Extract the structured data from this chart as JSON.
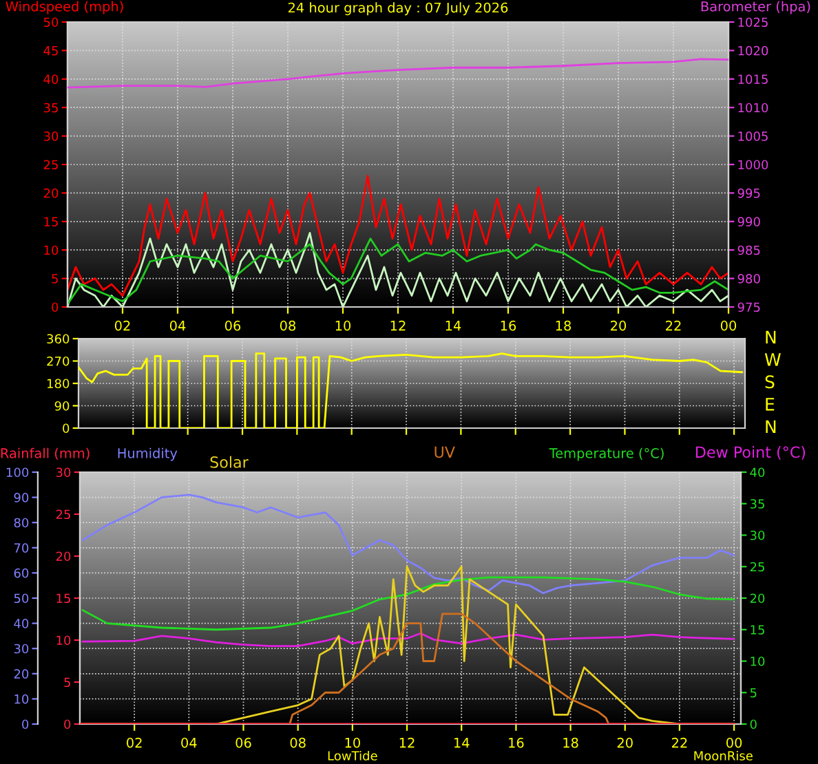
{
  "chart_data": [
    {
      "type": "line",
      "title": "24 hour graph day : 07 July 2026",
      "ylabel": "Windspeed (mph)",
      "y2label": "Barometer (hpa)",
      "grid": true,
      "xlim": [
        "2026-07-07T00:00",
        "2026-07-08T00:00"
      ],
      "xticks": [
        {
          "value": "2026-07-07T02:00",
          "label": "02"
        },
        {
          "value": "2026-07-07T04:00",
          "label": "04"
        },
        {
          "value": "2026-07-07T06:00",
          "label": "06"
        },
        {
          "value": "2026-07-07T08:00",
          "label": "08"
        },
        {
          "value": "2026-07-07T10:00",
          "label": "10"
        },
        {
          "value": "2026-07-07T12:00",
          "label": "12"
        },
        {
          "value": "2026-07-07T14:00",
          "label": "14"
        },
        {
          "value": "2026-07-07T16:00",
          "label": "16"
        },
        {
          "value": "2026-07-07T18:00",
          "label": "18"
        },
        {
          "value": "2026-07-07T20:00",
          "label": "20"
        },
        {
          "value": "2026-07-07T22:00",
          "label": "22"
        },
        {
          "value": "2026-07-08T00:00",
          "label": "00"
        }
      ],
      "ylim": [
        0,
        50
      ],
      "yticks": [
        0,
        5,
        10,
        15,
        20,
        25,
        30,
        35,
        40,
        45,
        50
      ],
      "y2lim": [
        975,
        1025
      ],
      "y2ticks": [
        975,
        980,
        985,
        990,
        995,
        1000,
        1005,
        1010,
        1015,
        1020,
        1025
      ],
      "x": [
        "2026-07-07T00:00",
        "2026-07-07T00:18",
        "2026-07-07T00:36",
        "2026-07-07T01:00",
        "2026-07-07T01:18",
        "2026-07-07T01:36",
        "2026-07-07T02:00",
        "2026-07-07T02:18",
        "2026-07-07T02:36",
        "2026-07-07T02:48",
        "2026-07-07T03:00",
        "2026-07-07T03:18",
        "2026-07-07T03:36",
        "2026-07-07T04:00",
        "2026-07-07T04:18",
        "2026-07-07T04:36",
        "2026-07-07T05:00",
        "2026-07-07T05:18",
        "2026-07-07T05:36",
        "2026-07-07T06:00",
        "2026-07-07T06:18",
        "2026-07-07T06:36",
        "2026-07-07T07:00",
        "2026-07-07T07:24",
        "2026-07-07T07:42",
        "2026-07-07T08:00",
        "2026-07-07T08:18",
        "2026-07-07T08:36",
        "2026-07-07T08:48",
        "2026-07-07T09:06",
        "2026-07-07T09:24",
        "2026-07-07T09:42",
        "2026-07-07T10:00",
        "2026-07-07T10:18",
        "2026-07-07T10:36",
        "2026-07-07T10:54",
        "2026-07-07T11:12",
        "2026-07-07T11:30",
        "2026-07-07T11:48",
        "2026-07-07T12:06",
        "2026-07-07T12:30",
        "2026-07-07T12:48",
        "2026-07-07T13:12",
        "2026-07-07T13:30",
        "2026-07-07T13:48",
        "2026-07-07T14:06",
        "2026-07-07T14:30",
        "2026-07-07T14:48",
        "2026-07-07T15:12",
        "2026-07-07T15:36",
        "2026-07-07T16:00",
        "2026-07-07T16:24",
        "2026-07-07T16:48",
        "2026-07-07T17:06",
        "2026-07-07T17:30",
        "2026-07-07T17:54",
        "2026-07-07T18:18",
        "2026-07-07T18:42",
        "2026-07-07T19:00",
        "2026-07-07T19:24",
        "2026-07-07T19:42",
        "2026-07-07T20:00",
        "2026-07-07T20:18",
        "2026-07-07T20:42",
        "2026-07-07T21:00",
        "2026-07-07T21:30",
        "2026-07-07T22:00",
        "2026-07-07T22:30",
        "2026-07-07T23:00",
        "2026-07-07T23:24",
        "2026-07-07T23:42",
        "2026-07-08T00:00"
      ],
      "series": [
        {
          "color": "#ff0000",
          "values": [
            3,
            7,
            4,
            5,
            3,
            4,
            2,
            5,
            8,
            14,
            18,
            12,
            19,
            13,
            17,
            11,
            20,
            12,
            17,
            8,
            12,
            17,
            11,
            19,
            13,
            17,
            11,
            18,
            20,
            14,
            8,
            11,
            6,
            11,
            15,
            23,
            14,
            19,
            12,
            18,
            10,
            16,
            11,
            19,
            12,
            18,
            9,
            17,
            11,
            19,
            12,
            18,
            13,
            21,
            12,
            16,
            10,
            15,
            9,
            14,
            7,
            10,
            5,
            8,
            4,
            6,
            4,
            6,
            4,
            7,
            5,
            6
          ]
        },
        {
          "color": "#c8f5c0",
          "values": [
            0,
            5,
            3,
            2,
            0,
            2,
            0,
            3,
            6,
            9,
            12,
            7,
            11,
            7,
            11,
            6,
            10,
            7,
            11,
            3,
            8,
            10,
            6,
            11,
            7,
            10,
            6,
            10,
            13,
            6,
            3,
            4,
            0,
            3,
            6,
            9,
            3,
            7,
            2,
            6,
            2,
            6,
            1,
            5,
            2,
            6,
            1,
            5,
            2,
            6,
            1,
            5,
            2,
            6,
            1,
            5,
            1,
            4,
            1,
            4,
            1,
            3,
            0,
            2,
            0,
            2,
            1,
            3,
            1,
            3,
            1,
            2
          ]
        },
        {
          "color": "#22cc22",
          "x": [
            "2026-07-07T00:00",
            "2026-07-07T00:30",
            "2026-07-07T01:00",
            "2026-07-07T01:30",
            "2026-07-07T02:00",
            "2026-07-07T02:30",
            "2026-07-07T03:00",
            "2026-07-07T04:00",
            "2026-07-07T05:00",
            "2026-07-07T05:30",
            "2026-07-07T06:00",
            "2026-07-07T06:30",
            "2026-07-07T07:00",
            "2026-07-07T08:00",
            "2026-07-07T08:48",
            "2026-07-07T09:12",
            "2026-07-07T09:30",
            "2026-07-07T10:00",
            "2026-07-07T10:18",
            "2026-07-07T10:36",
            "2026-07-07T11:00",
            "2026-07-07T11:24",
            "2026-07-07T12:00",
            "2026-07-07T12:24",
            "2026-07-07T13:00",
            "2026-07-07T13:36",
            "2026-07-07T14:00",
            "2026-07-07T14:30",
            "2026-07-07T15:00",
            "2026-07-07T15:30",
            "2026-07-07T16:00",
            "2026-07-07T16:18",
            "2026-07-07T16:48",
            "2026-07-07T17:00",
            "2026-07-07T17:30",
            "2026-07-07T18:00",
            "2026-07-07T18:30",
            "2026-07-07T19:00",
            "2026-07-07T19:30",
            "2026-07-07T20:00",
            "2026-07-07T20:30",
            "2026-07-07T21:00",
            "2026-07-07T21:30",
            "2026-07-07T22:00",
            "2026-07-07T23:00",
            "2026-07-07T23:30",
            "2026-07-08T00:00"
          ],
          "values": [
            0.5,
            4,
            3,
            2,
            1,
            3,
            8,
            9,
            8.5,
            8,
            5,
            7,
            9,
            8,
            11,
            8,
            6,
            4,
            5,
            8,
            12,
            9,
            11,
            8,
            9.5,
            9,
            10,
            8,
            9,
            9.5,
            10,
            8.5,
            10,
            11,
            10,
            9.5,
            8,
            6.5,
            6,
            4.5,
            3,
            3.5,
            2.5,
            2.5,
            3,
            4.5,
            3
          ]
        },
        {
          "color": "#e040e0",
          "axis": "y2",
          "x": [
            "2026-07-07T00:00",
            "2026-07-07T02:00",
            "2026-07-07T04:00",
            "2026-07-07T05:00",
            "2026-07-07T06:00",
            "2026-07-07T08:00",
            "2026-07-07T09:00",
            "2026-07-07T10:00",
            "2026-07-07T12:00",
            "2026-07-07T14:00",
            "2026-07-07T16:00",
            "2026-07-07T18:00",
            "2026-07-07T20:00",
            "2026-07-07T22:00",
            "2026-07-07T23:00",
            "2026-07-08T00:00"
          ],
          "values": [
            1013.5,
            1013.8,
            1013.8,
            1013.6,
            1014.2,
            1015,
            1015.5,
            1016,
            1016.6,
            1017,
            1017,
            1017.3,
            1017.8,
            1018,
            1018.5,
            1018.4
          ]
        }
      ]
    },
    {
      "type": "line",
      "grid": true,
      "tick_labels": "y",
      "xlim": [
        0,
        24.4
      ],
      "xticks": [
        2,
        4,
        6,
        8,
        10,
        12,
        14,
        16,
        18,
        20,
        22,
        24
      ],
      "ylim": [
        0,
        360
      ],
      "yticks": [
        0,
        90,
        180,
        270,
        360
      ],
      "annotations": [
        "N",
        "W",
        "S",
        "E",
        "N"
      ],
      "series": [
        {
          "color": "#ffff00",
          "x": [
            0,
            0.3,
            0.5,
            0.7,
            1,
            1.3,
            1.8,
            2,
            2.3,
            2.5,
            2.5,
            2.8,
            2.8,
            3.0,
            3.0,
            3.3,
            3.3,
            3.7,
            3.7,
            4.6,
            4.6,
            5.1,
            5.1,
            5.6,
            5.6,
            6.1,
            6.1,
            6.5,
            6.5,
            6.8,
            6.8,
            7.2,
            7.2,
            7.6,
            7.6,
            8.0,
            8.0,
            8.3,
            8.3,
            8.6,
            8.6,
            8.8,
            8.8,
            9.0,
            9.2,
            9.6,
            10,
            10.5,
            11,
            12,
            13,
            14,
            15,
            15.5,
            16,
            17,
            18,
            19,
            20,
            21,
            22,
            22.5,
            23,
            23.5,
            24.3
          ],
          "values": [
            245,
            200,
            185,
            220,
            230,
            215,
            215,
            240,
            240,
            280,
            0,
            0,
            290,
            290,
            0,
            0,
            270,
            270,
            0,
            0,
            290,
            290,
            0,
            0,
            270,
            270,
            0,
            0,
            300,
            300,
            0,
            0,
            280,
            280,
            0,
            0,
            285,
            285,
            0,
            0,
            285,
            285,
            0,
            0,
            290,
            285,
            270,
            285,
            290,
            295,
            285,
            285,
            290,
            300,
            290,
            290,
            285,
            285,
            290,
            275,
            270,
            275,
            265,
            230,
            225
          ]
        }
      ]
    },
    {
      "type": "line",
      "ylabel": "Humidity",
      "y2label": "Temperature (°C)",
      "y3label": "Rainfall (mm)",
      "grid": true,
      "xlim": [
        "2026-07-07T00:00",
        "2026-07-08T00:15"
      ],
      "xticks": [
        {
          "value": "2026-07-07T02:00",
          "label": "02"
        },
        {
          "value": "2026-07-07T04:00",
          "label": "04"
        },
        {
          "value": "2026-07-07T06:00",
          "label": "06"
        },
        {
          "value": "2026-07-07T08:00",
          "label": "08"
        },
        {
          "value": "2026-07-07T10:00",
          "label": "10"
        },
        {
          "value": "2026-07-07T12:00",
          "label": "12"
        },
        {
          "value": "2026-07-07T14:00",
          "label": "14"
        },
        {
          "value": "2026-07-07T16:00",
          "label": "16"
        },
        {
          "value": "2026-07-07T18:00",
          "label": "18"
        },
        {
          "value": "2026-07-07T20:00",
          "label": "20"
        },
        {
          "value": "2026-07-07T22:00",
          "label": "22"
        },
        {
          "value": "2026-07-08T00:00",
          "label": "00"
        }
      ],
      "ylim": [
        0,
        100
      ],
      "yticks": [
        0,
        10,
        20,
        30,
        40,
        50,
        60,
        70,
        80,
        90,
        100
      ],
      "y2lim": [
        0,
        40
      ],
      "y2ticks": [
        0,
        5,
        10,
        15,
        20,
        25,
        30,
        35,
        40
      ],
      "y3lim": [
        0,
        30
      ],
      "y3ticks": [
        0,
        5,
        10,
        15,
        20,
        25,
        30
      ],
      "annotations": [
        {
          "text": "LowTide",
          "x": "2026-07-07T10:00",
          "y": 0
        },
        {
          "text": "MoonRise",
          "x": "2026-07-07T23:36",
          "y": 0
        }
      ],
      "series": [
        {
          "color": "#8080ff",
          "x": [
            "2026-07-07T00:06",
            "2026-07-07T01:00",
            "2026-07-07T02:00",
            "2026-07-07T03:00",
            "2026-07-07T04:00",
            "2026-07-07T04:30",
            "2026-07-07T05:00",
            "2026-07-07T06:00",
            "2026-07-07T06:30",
            "2026-07-07T07:00",
            "2026-07-07T07:30",
            "2026-07-07T08:00",
            "2026-07-07T08:30",
            "2026-07-07T09:00",
            "2026-07-07T09:30",
            "2026-07-07T10:00",
            "2026-07-07T10:30",
            "2026-07-07T11:00",
            "2026-07-07T11:30",
            "2026-07-07T12:00",
            "2026-07-07T12:30",
            "2026-07-07T13:00",
            "2026-07-07T13:30",
            "2026-07-07T14:00",
            "2026-07-07T14:30",
            "2026-07-07T15:00",
            "2026-07-07T15:30",
            "2026-07-07T16:00",
            "2026-07-07T16:30",
            "2026-07-07T17:00",
            "2026-07-07T17:30",
            "2026-07-07T18:00",
            "2026-07-07T19:00",
            "2026-07-07T20:00",
            "2026-07-07T21:00",
            "2026-07-07T22:00",
            "2026-07-07T23:00",
            "2026-07-07T23:30",
            "2026-07-08T00:00"
          ],
          "values": [
            73,
            79,
            84,
            90,
            91,
            90,
            88,
            86,
            84,
            86,
            84,
            82,
            83,
            84,
            79,
            67,
            70,
            73,
            71,
            65,
            62,
            58,
            57,
            58,
            55,
            53,
            57,
            56,
            55,
            52,
            54,
            55,
            56,
            57,
            63,
            66,
            66,
            69,
            67
          ]
        },
        {
          "color": "#22dd22",
          "axis": "y2",
          "x": [
            "2026-07-07T00:06",
            "2026-07-07T01:00",
            "2026-07-07T03:00",
            "2026-07-07T05:00",
            "2026-07-07T07:00",
            "2026-07-07T08:00",
            "2026-07-07T09:00",
            "2026-07-07T10:00",
            "2026-07-07T11:00",
            "2026-07-07T12:00",
            "2026-07-07T13:00",
            "2026-07-07T14:00",
            "2026-07-07T15:00",
            "2026-07-07T17:00",
            "2026-07-07T19:00",
            "2026-07-07T20:00",
            "2026-07-07T21:00",
            "2026-07-07T22:00",
            "2026-07-07T23:00",
            "2026-07-08T00:00"
          ],
          "values": [
            18.1,
            16,
            15.3,
            15,
            15.3,
            16,
            17,
            18,
            19.8,
            20.6,
            22.2,
            22.9,
            23.3,
            23.3,
            23,
            22.6,
            21.8,
            20.6,
            19.9,
            19.8
          ]
        },
        {
          "name": "Dew Point (°C)",
          "color": "#e020e0",
          "axis": "y2",
          "x": [
            "2026-07-07T00:06",
            "2026-07-07T02:00",
            "2026-07-07T03:00",
            "2026-07-07T04:00",
            "2026-07-07T05:00",
            "2026-07-07T06:00",
            "2026-07-07T07:00",
            "2026-07-07T08:00",
            "2026-07-07T09:00",
            "2026-07-07T09:30",
            "2026-07-07T10:00",
            "2026-07-07T11:00",
            "2026-07-07T12:00",
            "2026-07-07T12:30",
            "2026-07-07T13:00",
            "2026-07-07T14:00",
            "2026-07-07T15:00",
            "2026-07-07T16:00",
            "2026-07-07T17:00",
            "2026-07-07T18:00",
            "2026-07-07T20:00",
            "2026-07-07T21:00",
            "2026-07-07T22:00",
            "2026-07-08T00:00"
          ],
          "values": [
            13.1,
            13.2,
            14,
            13.6,
            13,
            12.6,
            12.4,
            12.4,
            13.2,
            13.8,
            12.8,
            13.6,
            13.6,
            14.4,
            13.4,
            12.8,
            13.6,
            14.2,
            13.4,
            13.6,
            13.8,
            14.2,
            13.8,
            13.5
          ]
        },
        {
          "name": "Solar",
          "color": "#e8d020",
          "axis": "y2",
          "x": [
            "2026-07-07T00:00",
            "2026-07-07T05:00",
            "2026-07-07T05:12",
            "2026-07-07T06:00",
            "2026-07-07T07:00",
            "2026-07-07T08:00",
            "2026-07-07T08:30",
            "2026-07-07T08:48",
            "2026-07-07T09:12",
            "2026-07-07T09:30",
            "2026-07-07T09:42",
            "2026-07-07T10:00",
            "2026-07-07T10:18",
            "2026-07-07T10:36",
            "2026-07-07T10:48",
            "2026-07-07T11:00",
            "2026-07-07T11:18",
            "2026-07-07T11:30",
            "2026-07-07T11:48",
            "2026-07-07T12:00",
            "2026-07-07T12:18",
            "2026-07-07T12:36",
            "2026-07-07T13:00",
            "2026-07-07T13:30",
            "2026-07-07T14:00",
            "2026-07-07T14:06",
            "2026-07-07T14:18",
            "2026-07-07T15:00",
            "2026-07-07T15:42",
            "2026-07-07T15:48",
            "2026-07-07T16:00",
            "2026-07-07T17:00",
            "2026-07-07T17:24",
            "2026-07-07T17:54",
            "2026-07-07T18:30",
            "2026-07-07T20:00",
            "2026-07-07T20:30",
            "2026-07-07T21:00",
            "2026-07-07T22:00",
            "2026-07-08T00:00"
          ],
          "values": [
            0,
            0,
            0.2,
            1,
            2,
            3,
            4,
            11,
            12,
            14,
            6,
            7,
            12,
            16,
            10,
            17,
            11,
            23,
            11,
            25,
            22,
            21,
            22,
            22,
            25,
            10,
            23,
            21,
            19,
            9,
            19,
            14,
            1.5,
            1.5,
            9,
            3,
            1,
            0.5,
            0,
            0
          ]
        },
        {
          "name": "UV",
          "color": "#d07020",
          "axis": "y2",
          "x": [
            "2026-07-07T00:00",
            "2026-07-07T07:42",
            "2026-07-07T07:48",
            "2026-07-07T08:30",
            "2026-07-07T09:00",
            "2026-07-07T09:30",
            "2026-07-07T10:00",
            "2026-07-07T10:30",
            "2026-07-07T11:00",
            "2026-07-07T11:30",
            "2026-07-07T12:00",
            "2026-07-07T12:30",
            "2026-07-07T12:36",
            "2026-07-07T13:00",
            "2026-07-07T13:18",
            "2026-07-07T14:00",
            "2026-07-07T14:30",
            "2026-07-07T15:00",
            "2026-07-07T16:00",
            "2026-07-07T17:00",
            "2026-07-07T18:00",
            "2026-07-07T19:00",
            "2026-07-07T19:18",
            "2026-07-07T19:24",
            "2026-07-08T00:00"
          ],
          "values": [
            0,
            0,
            1.5,
            3,
            5,
            5,
            7,
            9,
            11,
            12,
            16,
            16,
            10,
            10,
            17.5,
            17.5,
            16,
            14,
            10,
            7,
            4,
            2,
            1,
            0,
            0
          ]
        },
        {
          "color": "#ff2040",
          "axis": "y3",
          "x": [
            "2026-07-07T00:00",
            "2026-07-08T00:00"
          ],
          "values": [
            0,
            0
          ]
        }
      ]
    }
  ]
}
